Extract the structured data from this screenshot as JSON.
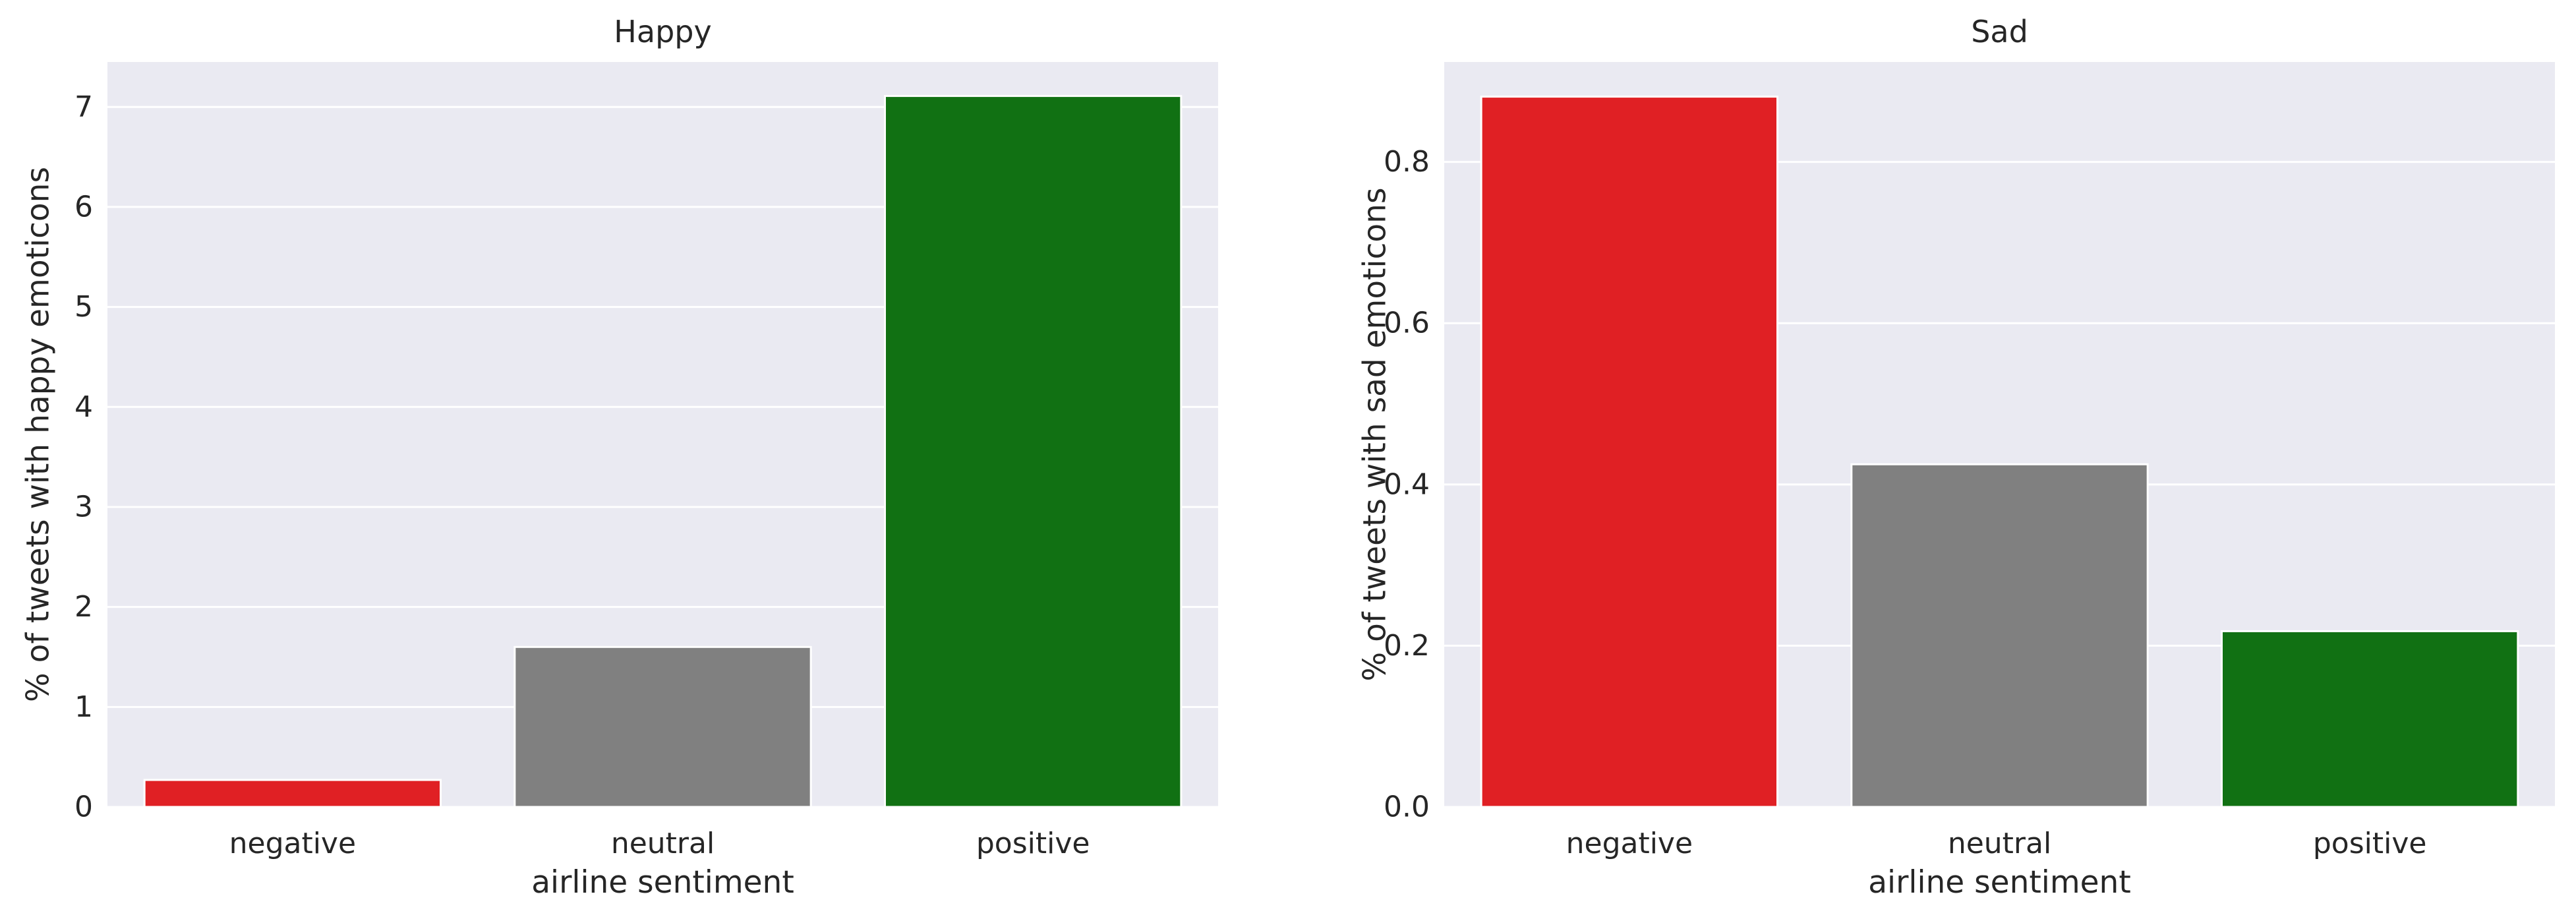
{
  "chart_data": [
    {
      "type": "bar",
      "title": "Happy",
      "xlabel": "airline sentiment",
      "ylabel": "% of tweets with happy emoticons",
      "categories": [
        "negative",
        "neutral",
        "positive"
      ],
      "values": [
        0.27,
        1.6,
        7.11
      ],
      "colors": [
        "#e02024",
        "#808080",
        "#117113"
      ],
      "ylim": [
        0,
        7.45
      ],
      "yticks": [
        0,
        1,
        2,
        3,
        4,
        5,
        6,
        7
      ],
      "ytick_labels": [
        "0",
        "1",
        "2",
        "3",
        "4",
        "5",
        "6",
        "7"
      ],
      "grid": true
    },
    {
      "type": "bar",
      "title": "Sad",
      "xlabel": "airline sentiment",
      "ylabel": "% of tweets with sad emoticons",
      "categories": [
        "negative",
        "neutral",
        "positive"
      ],
      "values": [
        0.881,
        0.425,
        0.218
      ],
      "colors": [
        "#e02024",
        "#808080",
        "#117113"
      ],
      "ylim": [
        0,
        0.924
      ],
      "yticks": [
        0.0,
        0.2,
        0.4,
        0.6,
        0.8
      ],
      "ytick_labels": [
        "0.0",
        "0.2",
        "0.4",
        "0.6",
        "0.8"
      ],
      "grid": true
    }
  ],
  "style": {
    "axes_background": "#eaeaf2",
    "grid_color": "#ffffff",
    "text_color": "#262626"
  }
}
